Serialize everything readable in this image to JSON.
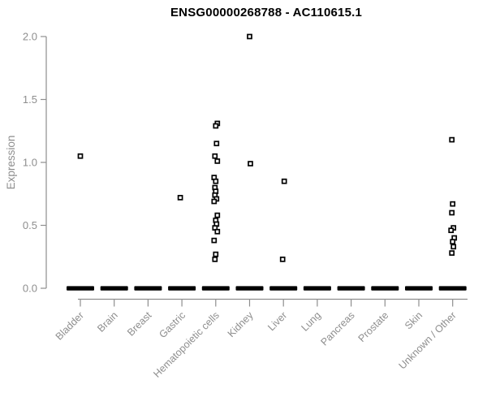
{
  "chart_data": {
    "type": "scatter",
    "subtype": "strip-plot-by-category",
    "title": "ENSG00000268788 - AC110615.1",
    "xlabel": "",
    "ylabel": "Expression",
    "ylim": [
      0.0,
      2.0
    ],
    "yticks": [
      "0.0",
      "0.5",
      "1.0",
      "1.5",
      "2.0"
    ],
    "grid": false,
    "legend_position": "none",
    "marker": "open-square",
    "categories": [
      "Bladder",
      "Brain",
      "Breast",
      "Gastric",
      "Hematopoietic cells",
      "Kidney",
      "Liver",
      "Lung",
      "Pancreas",
      "Prostate",
      "Skin",
      "Unknown / Other"
    ],
    "series": [
      {
        "name": "Bladder",
        "nonzero_values": [
          1.05
        ],
        "zero_cluster": true
      },
      {
        "name": "Brain",
        "nonzero_values": [],
        "zero_cluster": true
      },
      {
        "name": "Breast",
        "nonzero_values": [],
        "zero_cluster": true
      },
      {
        "name": "Gastric",
        "nonzero_values": [
          0.72
        ],
        "zero_cluster": true
      },
      {
        "name": "Hematopoietic cells",
        "nonzero_values": [
          1.31,
          1.29,
          1.15,
          1.05,
          1.01,
          0.88,
          0.85,
          0.8,
          0.77,
          0.74,
          0.71,
          0.69,
          0.58,
          0.54,
          0.51,
          0.48,
          0.45,
          0.38,
          0.27,
          0.23
        ],
        "zero_cluster": true
      },
      {
        "name": "Kidney",
        "nonzero_values": [
          2.0,
          0.99
        ],
        "zero_cluster": true
      },
      {
        "name": "Liver",
        "nonzero_values": [
          0.85,
          0.23
        ],
        "zero_cluster": true
      },
      {
        "name": "Lung",
        "nonzero_values": [],
        "zero_cluster": true
      },
      {
        "name": "Pancreas",
        "nonzero_values": [],
        "zero_cluster": true
      },
      {
        "name": "Prostate",
        "nonzero_values": [],
        "zero_cluster": true
      },
      {
        "name": "Skin",
        "nonzero_values": [],
        "zero_cluster": true
      },
      {
        "name": "Unknown / Other",
        "nonzero_values": [
          1.18,
          0.67,
          0.6,
          0.48,
          0.46,
          0.4,
          0.37,
          0.33,
          0.28
        ],
        "zero_cluster": true
      }
    ],
    "colors": {
      "point_stroke": "#000000",
      "point_fill": "#ffffff",
      "zero_cluster_bar": "#000000",
      "axis": "#8e8e8e",
      "tick_label": "#8e8e8e",
      "title": "#000000",
      "background": "#ffffff"
    }
  }
}
